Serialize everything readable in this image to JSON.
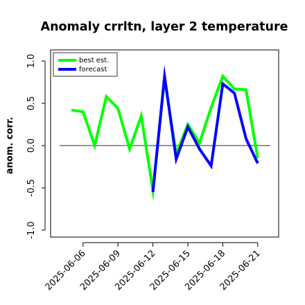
{
  "chart_data": {
    "type": "line",
    "title": "Anomaly crrltn, layer 2 temperature",
    "xlabel": "",
    "ylabel": "anom. corr.",
    "ylim": [
      -1.0,
      1.0
    ],
    "yticks": [
      "-1.0",
      "-0.5",
      "0.0",
      "0.5",
      "1.0"
    ],
    "x": [
      "2025-06-05",
      "2025-06-06",
      "2025-06-07",
      "2025-06-08",
      "2025-06-09",
      "2025-06-10",
      "2025-06-11",
      "2025-06-12",
      "2025-06-13",
      "2025-06-14",
      "2025-06-15",
      "2025-06-16",
      "2025-06-17",
      "2025-06-18",
      "2025-06-19",
      "2025-06-20",
      "2025-06-21",
      "2025-06-22"
    ],
    "xtick_labels": [
      "2025-06-06",
      "2025-06-09",
      "2025-06-12",
      "2025-06-15",
      "2025-06-18",
      "2025-06-21"
    ],
    "reference_line": 0.0,
    "legend_position": "top-left",
    "series": [
      {
        "name": "best est.",
        "color": "#00ff00",
        "values": [
          0.42,
          0.4,
          0.0,
          0.58,
          0.44,
          -0.04,
          0.35,
          -0.53,
          0.8,
          -0.1,
          0.25,
          0.03,
          0.45,
          0.82,
          0.67,
          0.66,
          -0.15,
          null
        ]
      },
      {
        "name": "forecast",
        "color": "#0000ff",
        "values": [
          null,
          null,
          null,
          null,
          null,
          null,
          null,
          -0.55,
          0.82,
          -0.16,
          0.22,
          -0.04,
          -0.24,
          0.73,
          0.62,
          0.08,
          -0.21,
          null
        ]
      }
    ]
  }
}
